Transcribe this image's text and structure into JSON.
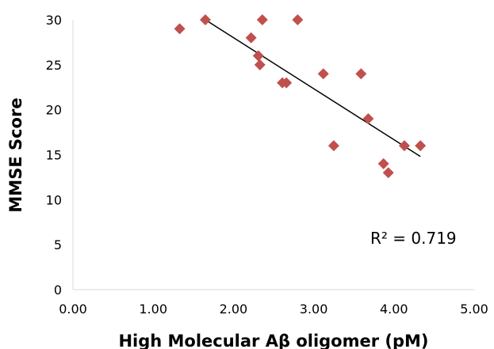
{
  "chart_data": {
    "type": "scatter",
    "title": "",
    "xlabel": "High Molecular Aβ oligomer (pM)",
    "ylabel": "MMSE Score",
    "xlim": [
      0,
      5
    ],
    "ylim": [
      0,
      30
    ],
    "x_ticks": [
      "0.00",
      "1.00",
      "2.00",
      "3.00",
      "4.00",
      "5.00"
    ],
    "y_ticks": [
      "0",
      "5",
      "10",
      "15",
      "20",
      "25",
      "30"
    ],
    "grid": false,
    "legend": "none",
    "series": [
      {
        "marker": "diamond",
        "color": "#c0504d",
        "points": [
          {
            "x": 1.33,
            "y": 29
          },
          {
            "x": 1.65,
            "y": 30
          },
          {
            "x": 2.22,
            "y": 28
          },
          {
            "x": 2.31,
            "y": 26
          },
          {
            "x": 2.33,
            "y": 25
          },
          {
            "x": 2.36,
            "y": 30
          },
          {
            "x": 2.61,
            "y": 23
          },
          {
            "x": 2.66,
            "y": 23
          },
          {
            "x": 2.8,
            "y": 30
          },
          {
            "x": 3.12,
            "y": 24
          },
          {
            "x": 3.25,
            "y": 16
          },
          {
            "x": 3.59,
            "y": 24
          },
          {
            "x": 3.68,
            "y": 19
          },
          {
            "x": 3.87,
            "y": 14
          },
          {
            "x": 3.93,
            "y": 13
          },
          {
            "x": 4.13,
            "y": 16
          },
          {
            "x": 4.33,
            "y": 16
          }
        ]
      }
    ],
    "trendline": {
      "type": "linear",
      "color": "#000000",
      "x": [
        1.65,
        4.33
      ],
      "y": [
        30,
        14.8
      ]
    },
    "annotation": "R² = 0.719"
  }
}
